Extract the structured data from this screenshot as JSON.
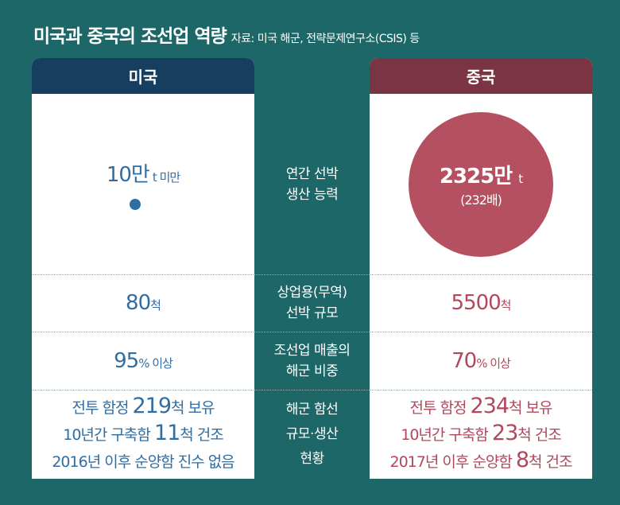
{
  "title": "미국과 중국의 조선업 역량",
  "source": "자료: 미국 해군, 전략문제연구소(CSIS) 등",
  "colors": {
    "background": "#1d6768",
    "us_header": "#173e5e",
    "china_header": "#7a3443",
    "us_text": "#2f6ea5",
    "china_text": "#b3475c",
    "circle": "#b4505f"
  },
  "us": {
    "header": "미국",
    "capacity": {
      "value": "10만",
      "unit": "t 미만"
    },
    "fleet": {
      "value": "80",
      "unit": "척"
    },
    "navy_share": {
      "value": "95",
      "unit": "% 이상"
    },
    "navy": [
      {
        "pre": "전투 함정 ",
        "num": "219",
        "post": "척 보유"
      },
      {
        "pre": "10년간 구축함 ",
        "num": "11",
        "post": "척 건조"
      },
      {
        "pre": "2016년 이후 순양함 진수 없음",
        "num": "",
        "post": ""
      }
    ]
  },
  "china": {
    "header": "중국",
    "capacity": {
      "value": "2325만",
      "unit": "t",
      "multiple": "(232배)"
    },
    "fleet": {
      "value": "5500",
      "unit": "척"
    },
    "navy_share": {
      "value": "70",
      "unit": "% 이상"
    },
    "navy": [
      {
        "pre": "전투 함정 ",
        "num": "234",
        "post": "척 보유"
      },
      {
        "pre": "10년간 구축함 ",
        "num": "23",
        "post": "척 건조"
      },
      {
        "pre": "2017년 이후 순양함 ",
        "num": "8",
        "post": "척 건조"
      }
    ]
  },
  "labels": {
    "capacity": [
      "연간 선박",
      "생산 능력"
    ],
    "fleet": [
      "상업용(무역)",
      "선박 규모"
    ],
    "navy_share": [
      "조선업 매출의",
      "해군 비중"
    ],
    "navy": [
      "해군 함선",
      "규모·생산",
      "현황"
    ]
  }
}
